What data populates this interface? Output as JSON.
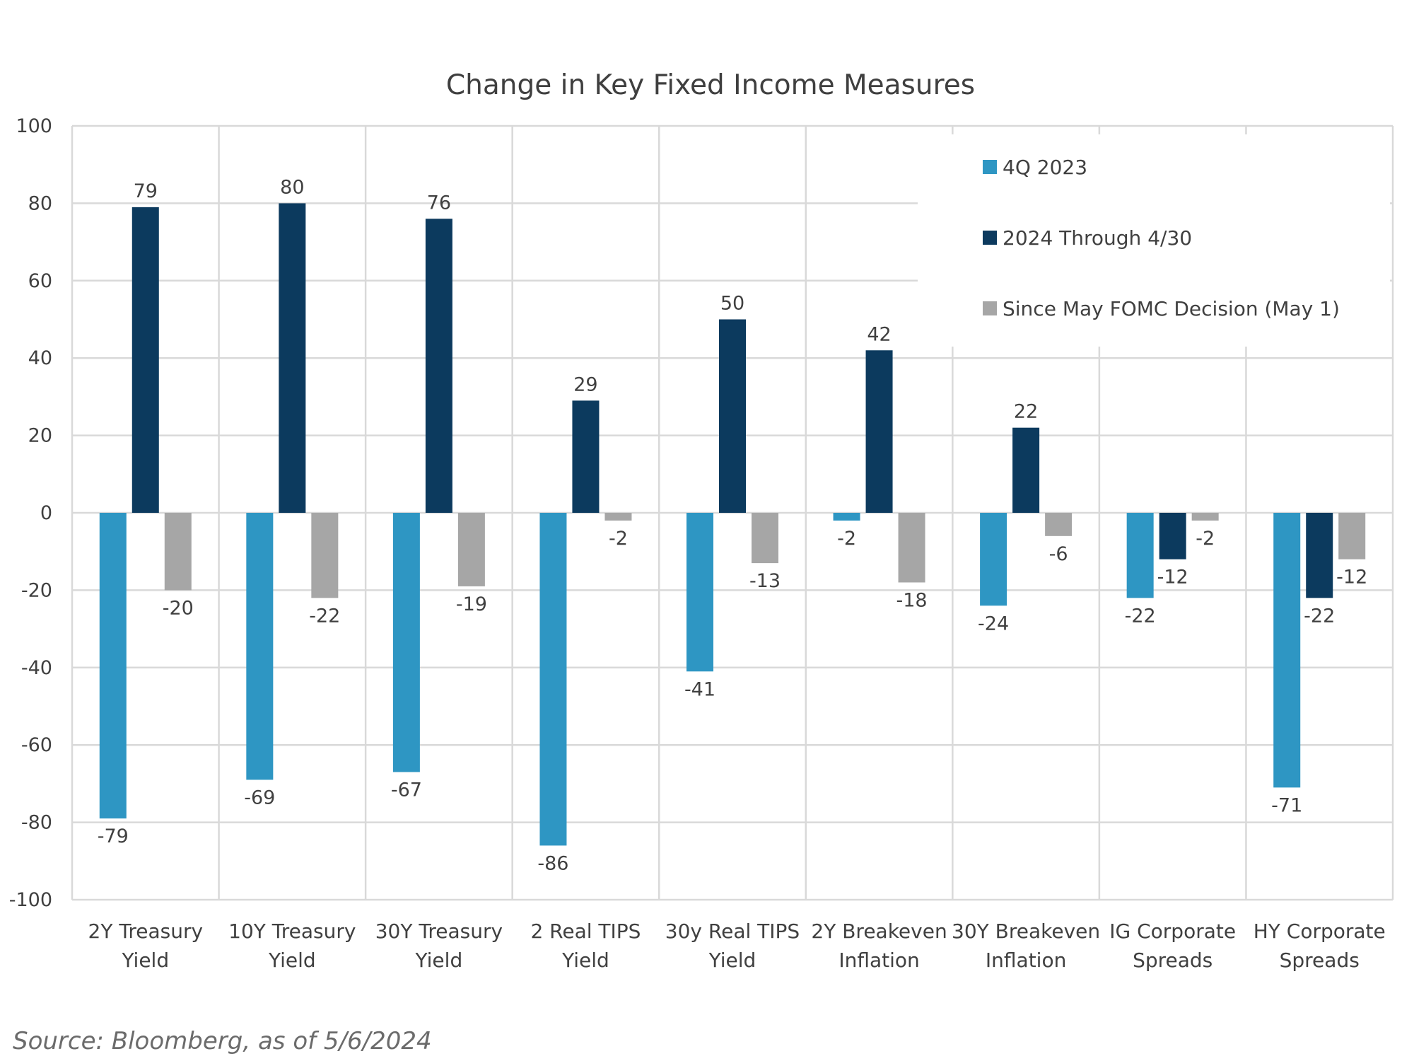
{
  "chart_data": {
    "type": "bar",
    "title": "Change in Key Fixed Income Measures",
    "categories": [
      [
        "2Y Treasury",
        "Yield"
      ],
      [
        "10Y Treasury",
        "Yield"
      ],
      [
        "30Y Treasury",
        "Yield"
      ],
      [
        "2 Real TIPS",
        "Yield"
      ],
      [
        "30y Real TIPS",
        "Yield"
      ],
      [
        "2Y Breakeven",
        "Inflation"
      ],
      [
        "30Y Breakeven",
        "Inflation"
      ],
      [
        "IG Corporate",
        "Spreads"
      ],
      [
        "HY Corporate",
        "Spreads"
      ]
    ],
    "series": [
      {
        "name": "4Q 2023",
        "color": "#2e96c3",
        "values": [
          -79,
          -69,
          -67,
          -86,
          -41,
          -2,
          -24,
          -22,
          -71
        ]
      },
      {
        "name": "2024 Through 4/30",
        "color": "#0c3a5e",
        "values": [
          79,
          80,
          76,
          29,
          50,
          42,
          22,
          -12,
          -22
        ]
      },
      {
        "name": "Since May FOMC Decision (May 1)",
        "color": "#a6a6a6",
        "values": [
          -20,
          -22,
          -19,
          -2,
          -13,
          -18,
          -6,
          -2,
          -12
        ]
      }
    ],
    "ylim": [
      -100,
      100
    ],
    "yticks": [
      100,
      80,
      60,
      40,
      20,
      0,
      -20,
      -40,
      -60,
      -80,
      -100
    ],
    "grid": true,
    "legend_position": "top-right"
  },
  "source": "Source: Bloomberg, as of 5/6/2024"
}
